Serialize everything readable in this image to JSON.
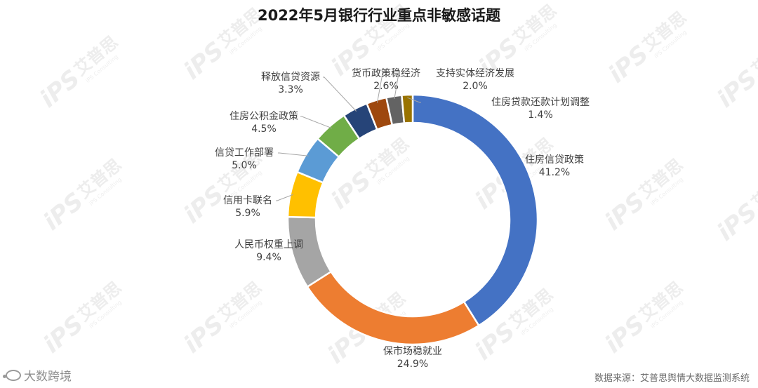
{
  "title": "2022年5月银行行业重点非敏感话题",
  "source": "数据来源：艾普思舆情大数据监测系统",
  "brand": {
    "name": "大数跨境",
    "icon": "chat-bubble-icon"
  },
  "watermark": {
    "mark": "iPS",
    "brand": "艾普思",
    "sub": "iPS Consulting"
  },
  "chart_data": {
    "type": "pie",
    "variant": "donut",
    "title": "2022年5月银行行业重点非敏感话题",
    "unit": "%",
    "slices": [
      {
        "label": "住房信贷政策",
        "value": 41.2,
        "display": "41.2%",
        "color": "#4472C4"
      },
      {
        "label": "保市场稳就业",
        "value": 24.9,
        "display": "24.9%",
        "color": "#ED7D31"
      },
      {
        "label": "人民币权重上调",
        "value": 9.4,
        "display": "9.4%",
        "color": "#A5A5A5"
      },
      {
        "label": "信用卡联名",
        "value": 5.9,
        "display": "5.9%",
        "color": "#FFC000"
      },
      {
        "label": "信贷工作部署",
        "value": 5.0,
        "display": "5.0%",
        "color": "#5B9BD5"
      },
      {
        "label": "住房公积金政策",
        "value": 4.5,
        "display": "4.5%",
        "color": "#70AD47"
      },
      {
        "label": "释放信贷资源",
        "value": 3.3,
        "display": "3.3%",
        "color": "#264478"
      },
      {
        "label": "货币政策稳经济",
        "value": 2.6,
        "display": "2.6%",
        "color": "#9E480E"
      },
      {
        "label": "支持实体经济发展",
        "value": 2.0,
        "display": "2.0%",
        "color": "#636363"
      },
      {
        "label": "住房贷款还款计划调整",
        "value": 1.4,
        "display": "1.4%",
        "color": "#997300"
      }
    ]
  }
}
